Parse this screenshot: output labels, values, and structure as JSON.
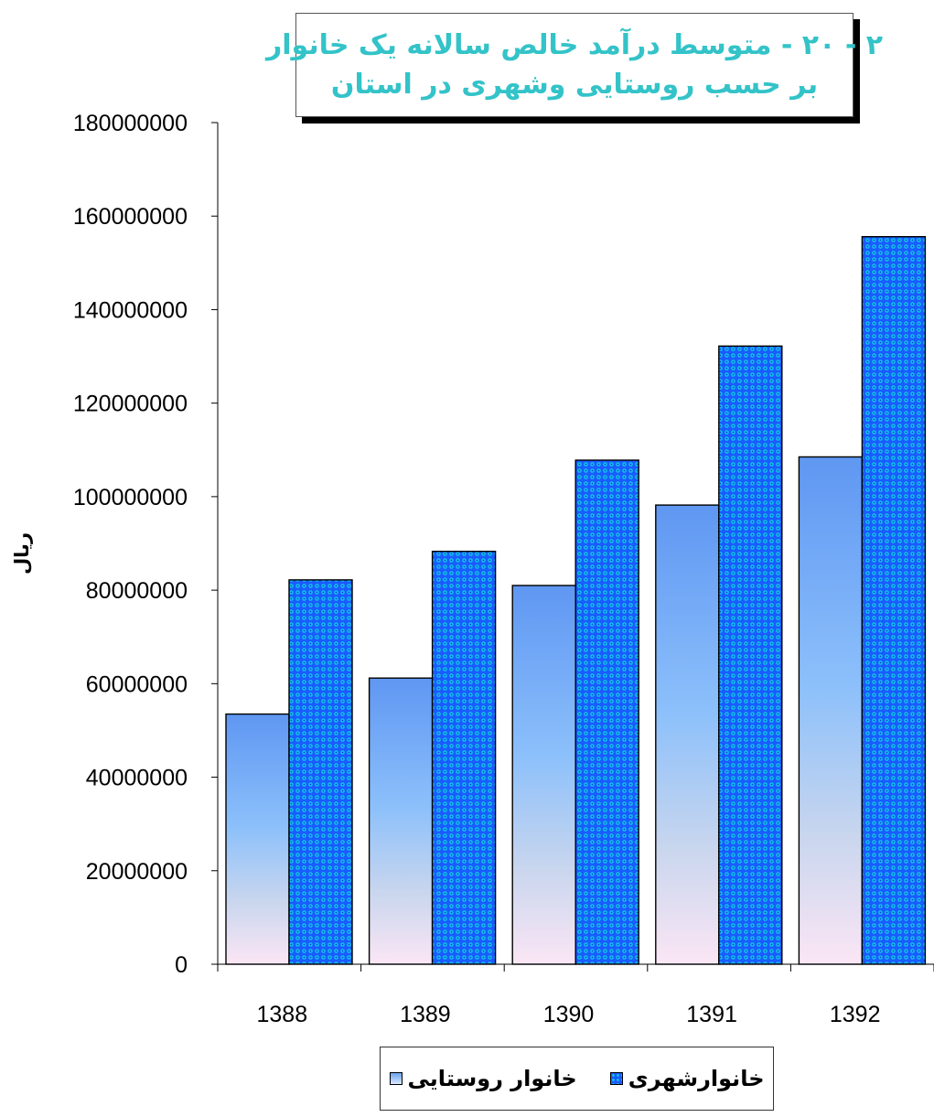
{
  "chart_data": {
    "type": "bar",
    "title": "۲ - ۲۰ - متوسط درآمد خالص سالانه یک خانوار",
    "subtitle": "بر حسب روستایی وشهری در استان",
    "ylabel": "ریال",
    "xlabel": "",
    "categories": [
      "1388",
      "1389",
      "1390",
      "1391",
      "1392"
    ],
    "series": [
      {
        "name": "خانوار روستایی",
        "values": [
          53500000,
          61200000,
          81000000,
          98200000,
          108500000
        ]
      },
      {
        "name": "خانوارشهری",
        "values": [
          82200000,
          88300000,
          107800000,
          132200000,
          155600000
        ]
      }
    ],
    "ylim": [
      0,
      180000000
    ],
    "yticks": [
      0,
      20000000,
      40000000,
      60000000,
      80000000,
      100000000,
      120000000,
      140000000,
      160000000,
      180000000
    ],
    "ytick_labels": [
      "0",
      "20000000",
      "40000000",
      "60000000",
      "80000000",
      "100000000",
      "120000000",
      "140000000",
      "160000000",
      "180000000"
    ],
    "grid": false,
    "legend_position": "bottom",
    "colors": {
      "rural_top": "#5f97f2",
      "rural_bottom": "#fbe6f5",
      "urban_base": "#1a5cff",
      "urban_dots": "#12c6e8",
      "title_color": "#33c3c8"
    }
  },
  "legend": {
    "urban_label": "خانوارشهری",
    "rural_label": "خانوار روستایی"
  }
}
